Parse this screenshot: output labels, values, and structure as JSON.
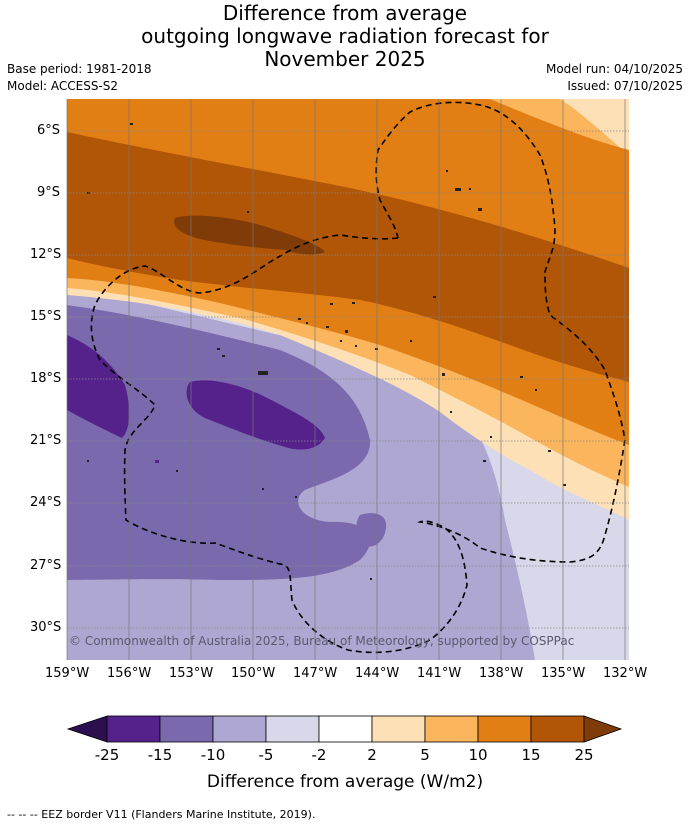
{
  "title": {
    "line1": "Difference from average",
    "line2": "outgoing longwave radiation forecast for",
    "line3": "November 2025"
  },
  "meta": {
    "base_period": "Base period: 1981-2018",
    "model": "Model: ACCESS-S2",
    "model_run": "Model run: 04/10/2025",
    "issued": "Issued: 07/10/2025"
  },
  "axes": {
    "lat_labels": [
      "6°S",
      "9°S",
      "12°S",
      "15°S",
      "18°S",
      "21°S",
      "24°S",
      "27°S",
      "30°S"
    ],
    "lon_labels": [
      "159°W",
      "156°W",
      "153°W",
      "150°W",
      "147°W",
      "144°W",
      "141°W",
      "138°W",
      "135°W",
      "132°W"
    ]
  },
  "copyright": "© Commonwealth of Australia 2025, Bureau of Meteorology, supported by COSPPac",
  "colorbar": {
    "ticks": [
      "-25",
      "-15",
      "-10",
      "-5",
      "-2",
      "2",
      "5",
      "10",
      "15",
      "25"
    ],
    "title": "Difference from average (W/m2)",
    "colors": {
      "below_min": "#2d0f4f",
      "c1": "#55228c",
      "c2": "#7a6aad",
      "c3": "#aea7d1",
      "c4": "#d8d8ea",
      "c5": "#ffffff",
      "c6": "#fde0b6",
      "c7": "#fbb55c",
      "c8": "#e17f14",
      "c9": "#b15607",
      "above_max": "#7f3b08"
    }
  },
  "footnote": "-- -- -- EEZ border V11 (Flanders Marine Institute, 2019)."
}
